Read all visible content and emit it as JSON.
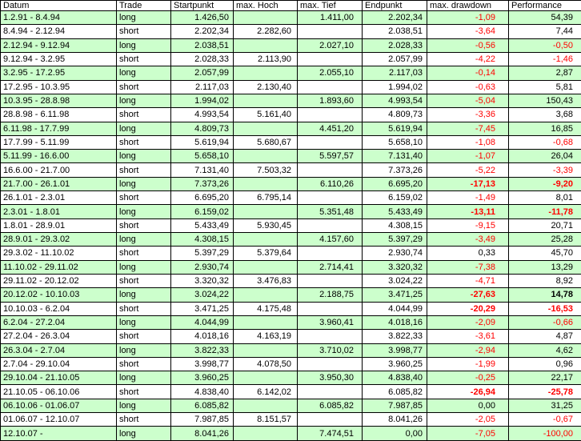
{
  "colors": {
    "long_row_bg": "#ccffcc",
    "short_row_bg": "#ffffff",
    "negative_text": "#ff0000",
    "default_text": "#000000",
    "gridline": "#000000"
  },
  "table": {
    "headers": [
      "Datum",
      "Trade",
      "Startpunkt",
      "max. Hoch",
      "max. Tief",
      "Endpunkt",
      "max. drawdown",
      "Performance"
    ],
    "header_keys": [
      "datum",
      "trade",
      "startpunkt",
      "max-hoch",
      "max-tief",
      "endpunkt",
      "max-drawdown",
      "performance"
    ],
    "rows": [
      {
        "datum": "1.2.91 - 8.4.94",
        "trade": "long",
        "startpunkt": "1.426,50",
        "max_hoch": "",
        "max_tief": "1.411,00",
        "endpunkt": "2.202,34",
        "drawdown": "-1,09",
        "performance": "54,39",
        "emphasis": false
      },
      {
        "datum": "8.4.94 - 2.12.94",
        "trade": "short",
        "startpunkt": "2.202,34",
        "max_hoch": "2.282,60",
        "max_tief": "",
        "endpunkt": "2.038,51",
        "drawdown": "-3,64",
        "performance": "7,44",
        "emphasis": false
      },
      {
        "datum": "2.12.94 - 9.12.94",
        "trade": "long",
        "startpunkt": "2.038,51",
        "max_hoch": "",
        "max_tief": "2.027,10",
        "endpunkt": "2.028,33",
        "drawdown": "-0,56",
        "performance": "-0,50",
        "emphasis": false
      },
      {
        "datum": "9.12.94 - 3.2.95",
        "trade": "short",
        "startpunkt": "2.028,33",
        "max_hoch": "2.113,90",
        "max_tief": "",
        "endpunkt": "2.057,99",
        "drawdown": "-4,22",
        "performance": "-1,46",
        "emphasis": false
      },
      {
        "datum": "3.2.95 - 17.2.95",
        "trade": "long",
        "startpunkt": "2.057,99",
        "max_hoch": "",
        "max_tief": "2.055,10",
        "endpunkt": "2.117,03",
        "drawdown": "-0,14",
        "performance": "2,87",
        "emphasis": false
      },
      {
        "datum": "17.2.95 - 10.3.95",
        "trade": "short",
        "startpunkt": "2.117,03",
        "max_hoch": "2.130,40",
        "max_tief": "",
        "endpunkt": "1.994,02",
        "drawdown": "-0,63",
        "performance": "5,81",
        "emphasis": false
      },
      {
        "datum": "10.3.95 - 28.8.98",
        "trade": "long",
        "startpunkt": "1.994,02",
        "max_hoch": "",
        "max_tief": "1.893,60",
        "endpunkt": "4.993,54",
        "drawdown": "-5,04",
        "performance": "150,43",
        "emphasis": false
      },
      {
        "datum": "28.8.98 - 6.11.98",
        "trade": "short",
        "startpunkt": "4.993,54",
        "max_hoch": "5.161,40",
        "max_tief": "",
        "endpunkt": "4.809,73",
        "drawdown": "-3,36",
        "performance": "3,68",
        "emphasis": false
      },
      {
        "datum": "6.11.98 - 17.7.99",
        "trade": "long",
        "startpunkt": "4.809,73",
        "max_hoch": "",
        "max_tief": "4.451,20",
        "endpunkt": "5.619,94",
        "drawdown": "-7,45",
        "performance": "16,85",
        "emphasis": false
      },
      {
        "datum": "17.7.99 - 5.11.99",
        "trade": "short",
        "startpunkt": "5.619,94",
        "max_hoch": "5.680,67",
        "max_tief": "",
        "endpunkt": "5.658,10",
        "drawdown": "-1,08",
        "performance": "-0,68",
        "emphasis": false
      },
      {
        "datum": "5.11.99 - 16.6.00",
        "trade": "long",
        "startpunkt": "5.658,10",
        "max_hoch": "",
        "max_tief": "5.597,57",
        "endpunkt": "7.131,40",
        "drawdown": "-1,07",
        "performance": "26,04",
        "emphasis": false
      },
      {
        "datum": "16.6.00 - 21.7.00",
        "trade": "short",
        "startpunkt": "7.131,40",
        "max_hoch": "7.503,32",
        "max_tief": "",
        "endpunkt": "7.373,26",
        "drawdown": "-5,22",
        "performance": "-3,39",
        "emphasis": false
      },
      {
        "datum": "21.7.00 - 26.1.01",
        "trade": "long",
        "startpunkt": "7.373,26",
        "max_hoch": "",
        "max_tief": "6.110,26",
        "endpunkt": "6.695,20",
        "drawdown": "-17,13",
        "performance": "-9,20",
        "emphasis": true
      },
      {
        "datum": "26.1.01 - 2.3.01",
        "trade": "short",
        "startpunkt": "6.695,20",
        "max_hoch": "6.795,14",
        "max_tief": "",
        "endpunkt": "6.159,02",
        "drawdown": "-1,49",
        "performance": "8,01",
        "emphasis": false
      },
      {
        "datum": "2.3.01 - 1.8.01",
        "trade": "long",
        "startpunkt": "6.159,02",
        "max_hoch": "",
        "max_tief": "5.351,48",
        "endpunkt": "5.433,49",
        "drawdown": "-13,11",
        "performance": "-11,78",
        "emphasis": true
      },
      {
        "datum": "1.8.01 - 28.9.01",
        "trade": "short",
        "startpunkt": "5.433,49",
        "max_hoch": "5.930,45",
        "max_tief": "",
        "endpunkt": "4.308,15",
        "drawdown": "-9,15",
        "performance": "20,71",
        "emphasis": false
      },
      {
        "datum": "28.9.01 - 29.3.02",
        "trade": "long",
        "startpunkt": "4.308,15",
        "max_hoch": "",
        "max_tief": "4.157,60",
        "endpunkt": "5.397,29",
        "drawdown": "-3,49",
        "performance": "25,28",
        "emphasis": false
      },
      {
        "datum": "29.3.02 - 11.10.02",
        "trade": "short",
        "startpunkt": "5.397,29",
        "max_hoch": "5.379,64",
        "max_tief": "",
        "endpunkt": "2.930,74",
        "drawdown": "0,33",
        "performance": "45,70",
        "emphasis": false
      },
      {
        "datum": "11.10.02 - 29.11.02",
        "trade": "long",
        "startpunkt": "2.930,74",
        "max_hoch": "",
        "max_tief": "2.714,41",
        "endpunkt": "3.320,32",
        "drawdown": "-7,38",
        "performance": "13,29",
        "emphasis": false
      },
      {
        "datum": "29.11.02 - 20.12.02",
        "trade": "short",
        "startpunkt": "3.320,32",
        "max_hoch": "3.476,83",
        "max_tief": "",
        "endpunkt": "3.024,22",
        "drawdown": "-4,71",
        "performance": "8,92",
        "emphasis": false
      },
      {
        "datum": "20.12.02 - 10.10.03",
        "trade": "long",
        "startpunkt": "3.024,22",
        "max_hoch": "",
        "max_tief": "2.188,75",
        "endpunkt": "3.471,25",
        "drawdown": "-27,63",
        "performance": "14,78",
        "emphasis": true
      },
      {
        "datum": "10.10.03 - 6.2.04",
        "trade": "short",
        "startpunkt": "3.471,25",
        "max_hoch": "4.175,48",
        "max_tief": "",
        "endpunkt": "4.044,99",
        "drawdown": "-20,29",
        "performance": "-16,53",
        "emphasis": true
      },
      {
        "datum": "6.2.04 - 27.2.04",
        "trade": "long",
        "startpunkt": "4.044,99",
        "max_hoch": "",
        "max_tief": "3.960,41",
        "endpunkt": "4.018,16",
        "drawdown": "-2,09",
        "performance": "-0,66",
        "emphasis": false
      },
      {
        "datum": "27.2.04 - 26.3.04",
        "trade": "short",
        "startpunkt": "4.018,16",
        "max_hoch": "4.163,19",
        "max_tief": "",
        "endpunkt": "3.822,33",
        "drawdown": "-3,61",
        "performance": "4,87",
        "emphasis": false
      },
      {
        "datum": "26.3.04 - 2.7.04",
        "trade": "long",
        "startpunkt": "3.822,33",
        "max_hoch": "",
        "max_tief": "3.710,02",
        "endpunkt": "3.998,77",
        "drawdown": "-2,94",
        "performance": "4,62",
        "emphasis": false
      },
      {
        "datum": "2.7.04 - 29.10.04",
        "trade": "short",
        "startpunkt": "3.998,77",
        "max_hoch": "4.078,50",
        "max_tief": "",
        "endpunkt": "3.960,25",
        "drawdown": "-1,99",
        "performance": "0,96",
        "emphasis": false
      },
      {
        "datum": "29.10.04 - 21.10.05",
        "trade": "long",
        "startpunkt": "3.960,25",
        "max_hoch": "",
        "max_tief": "3.950,30",
        "endpunkt": "4.838,40",
        "drawdown": "-0,25",
        "performance": "22,17",
        "emphasis": false
      },
      {
        "datum": "21.10.05 - 06.10.06",
        "trade": "short",
        "startpunkt": "4.838,40",
        "max_hoch": "6.142,02",
        "max_tief": "",
        "endpunkt": "6.085,82",
        "drawdown": "-26,94",
        "performance": "-25,78",
        "emphasis": true
      },
      {
        "datum": "06.10.06 - 01.06.07",
        "trade": "long",
        "startpunkt": "6.085,82",
        "max_hoch": "",
        "max_tief": "6.085,82",
        "endpunkt": "7.987,85",
        "drawdown": "0,00",
        "performance": "31,25",
        "emphasis": false
      },
      {
        "datum": "01.06.07 - 12.10.07",
        "trade": "short",
        "startpunkt": "7.987,85",
        "max_hoch": "8.151,57",
        "max_tief": "",
        "endpunkt": "8.041,26",
        "drawdown": "-2,05",
        "performance": "-0,67",
        "emphasis": false
      },
      {
        "datum": "12.10.07 -",
        "trade": "long",
        "startpunkt": "8.041,26",
        "max_hoch": "",
        "max_tief": "7.474,51",
        "endpunkt": "0,00",
        "drawdown": "-7,05",
        "performance": "-100,00",
        "emphasis": false
      }
    ]
  }
}
